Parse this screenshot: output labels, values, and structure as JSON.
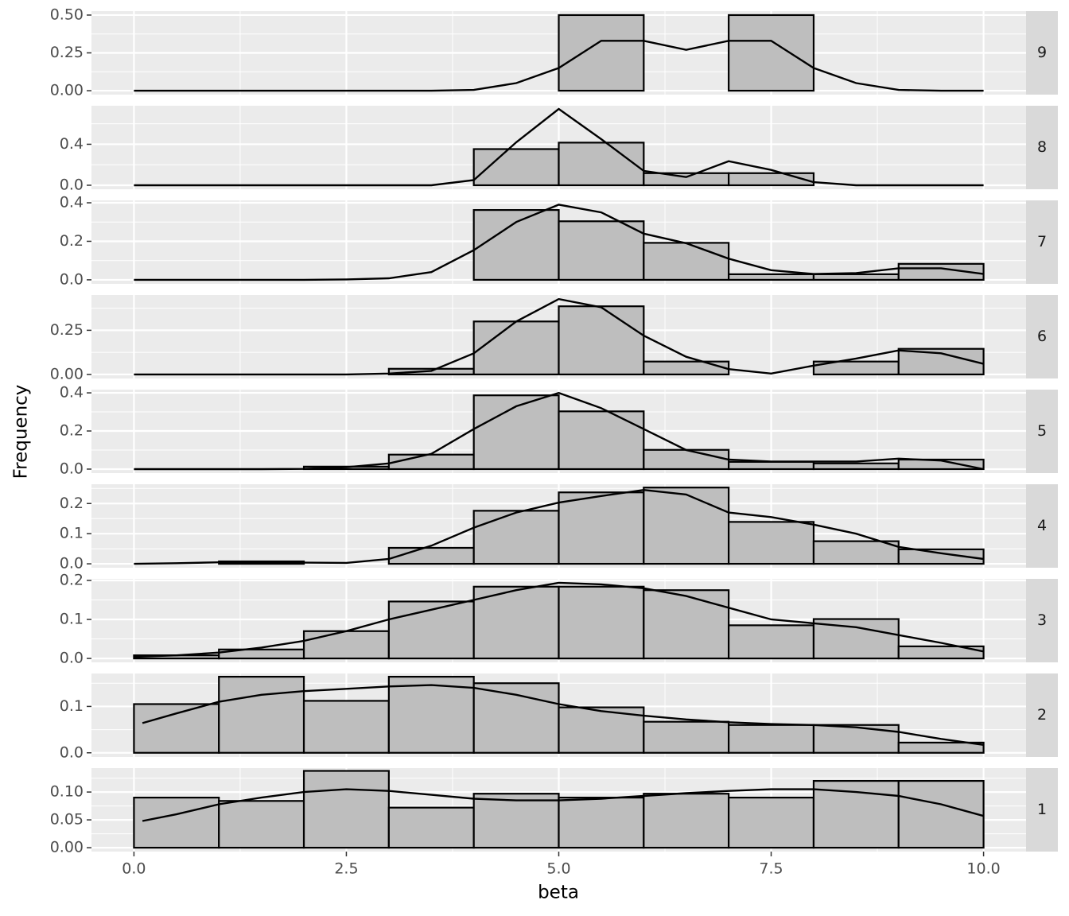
{
  "chart_data": {
    "type": "histogram",
    "xlabel": "beta",
    "ylabel": "Frequency",
    "xlim": [
      -0.5,
      10.5
    ],
    "xticks": [
      {
        "value": 0,
        "label": "0.0"
      },
      2.5,
      {
        "value": 5,
        "label": "5.0"
      },
      7.5,
      {
        "value": 10,
        "label": "10.0"
      }
    ],
    "bins": [
      0,
      1,
      2,
      3,
      4,
      5,
      6,
      7,
      8,
      9,
      10
    ],
    "color": "#bebebe",
    "edgecolor": "#000000",
    "line_color": "#000000",
    "grid": true,
    "facets": [
      {
        "strip": "9",
        "ylim": [
          -0.026,
          0.526
        ],
        "yticks": [
          {
            "value": 0,
            "label": "0.00"
          },
          0.25,
          {
            "value": 0.5,
            "label": "0.50"
          }
        ],
        "values": [
          0,
          0,
          0,
          0,
          0,
          0.5,
          0,
          0.5,
          0,
          0
        ],
        "density": {
          "x": [
            0,
            0.5,
            1,
            1.5,
            2,
            2.5,
            3,
            3.5,
            4,
            4.5,
            5,
            5.5,
            6,
            6.5,
            7,
            7.5,
            8,
            8.5,
            9,
            9.5,
            10
          ],
          "values": [
            0,
            0,
            0,
            0,
            0,
            0,
            0,
            0,
            0.005,
            0.05,
            0.15,
            0.33,
            0.33,
            0.27,
            0.33,
            0.33,
            0.15,
            0.05,
            0.005,
            0,
            0
          ]
        }
      },
      {
        "strip": "8",
        "ylim": [
          -0.039,
          0.776
        ],
        "yticks": [
          {
            "value": 0,
            "label": "0.0"
          },
          0.4
        ],
        "values": [
          0,
          0,
          0,
          0,
          0.353,
          0.416,
          0.118,
          0.118,
          0,
          0
        ],
        "density": {
          "x": [
            0,
            0.5,
            1,
            1.5,
            2,
            2.5,
            3,
            3.5,
            4,
            4.5,
            5,
            5.5,
            6,
            6.5,
            7,
            7.5,
            8,
            8.5,
            9,
            9.5,
            10
          ],
          "values": [
            0,
            0,
            0,
            0,
            0,
            0,
            0,
            0,
            0.05,
            0.42,
            0.745,
            0.45,
            0.14,
            0.08,
            0.235,
            0.15,
            0.03,
            0,
            0,
            0,
            0
          ]
        }
      },
      {
        "strip": "7",
        "ylim": [
          -0.021,
          0.4125
        ],
        "yticks": [
          {
            "value": 0,
            "label": "0.0"
          },
          0.2,
          0.4
        ],
        "values": [
          0,
          0,
          0,
          0,
          0.3625,
          0.304,
          0.192,
          0.029,
          0.029,
          0.083
        ],
        "density": {
          "x": [
            0,
            0.5,
            1,
            1.5,
            2,
            2.5,
            3,
            3.5,
            4,
            4.5,
            5,
            5.5,
            6,
            6.5,
            7,
            7.5,
            8,
            8.5,
            9,
            9.5,
            10
          ],
          "values": [
            0,
            0,
            0,
            0,
            0,
            0.002,
            0.008,
            0.04,
            0.154,
            0.3,
            0.39,
            0.35,
            0.24,
            0.19,
            0.11,
            0.05,
            0.03,
            0.035,
            0.06,
            0.06,
            0.03
          ]
        }
      },
      {
        "strip": "6",
        "ylim": [
          -0.023,
          0.45
        ],
        "yticks": [
          {
            "value": 0,
            "label": "0.00"
          },
          0.25
        ],
        "values": [
          0,
          0,
          0,
          0.032,
          0.3,
          0.386,
          0.073,
          0,
          0.073,
          0.145
        ],
        "density": {
          "x": [
            0,
            0.5,
            1,
            1.5,
            2,
            2.5,
            3,
            3.5,
            4,
            4.5,
            5,
            5.5,
            6,
            6.5,
            7,
            7.5,
            8,
            8.5,
            9,
            9.5,
            10
          ],
          "values": [
            0,
            0,
            0,
            0,
            0,
            0,
            0.005,
            0.02,
            0.12,
            0.3,
            0.427,
            0.38,
            0.22,
            0.1,
            0.03,
            0.005,
            0.05,
            0.09,
            0.136,
            0.12,
            0.06
          ]
        }
      },
      {
        "strip": "5",
        "ylim": [
          -0.021,
          0.417
        ],
        "yticks": [
          {
            "value": 0,
            "label": "0.0"
          },
          0.2,
          0.4
        ],
        "values": [
          0,
          0,
          0.013,
          0.076,
          0.387,
          0.303,
          0.101,
          0.038,
          0.03,
          0.05
        ],
        "density": {
          "x": [
            0,
            0.5,
            1,
            1.5,
            2,
            2.5,
            3,
            3.5,
            4,
            4.5,
            5,
            5.5,
            6,
            6.5,
            7,
            7.5,
            8,
            8.5,
            9,
            9.5,
            10
          ],
          "values": [
            0,
            0,
            0,
            0,
            0.001,
            0.01,
            0.03,
            0.08,
            0.21,
            0.33,
            0.4,
            0.32,
            0.21,
            0.1,
            0.05,
            0.04,
            0.04,
            0.04,
            0.055,
            0.045,
            0
          ]
        }
      },
      {
        "strip": "4",
        "ylim": [
          -0.013,
          0.264
        ],
        "yticks": [
          {
            "value": 0,
            "label": "0.0"
          },
          0.1,
          0.2
        ],
        "values": [
          0,
          0.008,
          0,
          0.053,
          0.176,
          0.237,
          0.253,
          0.139,
          0.075,
          0.048
        ],
        "density": {
          "x": [
            0,
            0.5,
            1,
            1.5,
            2,
            2.5,
            3,
            3.5,
            4,
            4.5,
            5,
            5.5,
            6,
            6.5,
            7,
            7.5,
            8,
            8.5,
            9,
            9.5,
            10
          ],
          "values": [
            0,
            0.002,
            0.005,
            0.006,
            0.004,
            0.003,
            0.016,
            0.06,
            0.12,
            0.17,
            0.203,
            0.225,
            0.245,
            0.23,
            0.17,
            0.155,
            0.13,
            0.1,
            0.056,
            0.035,
            0.016
          ]
        }
      },
      {
        "strip": "3",
        "ylim": [
          -0.01,
          0.204
        ],
        "yticks": [
          {
            "value": 0,
            "label": "0.0"
          },
          0.1,
          0.2
        ],
        "values": [
          0.008,
          0.023,
          0.07,
          0.146,
          0.184,
          0.184,
          0.175,
          0.085,
          0.101,
          0.031
        ],
        "density": {
          "x": [
            0,
            0.5,
            1,
            1.5,
            2,
            2.5,
            3,
            3.5,
            4,
            4.5,
            5,
            5.5,
            6,
            6.5,
            7,
            7.5,
            8,
            8.5,
            9,
            9.5,
            10
          ],
          "values": [
            0.004,
            0.008,
            0.015,
            0.028,
            0.045,
            0.07,
            0.1,
            0.125,
            0.15,
            0.175,
            0.194,
            0.19,
            0.18,
            0.16,
            0.13,
            0.1,
            0.09,
            0.08,
            0.06,
            0.04,
            0.018
          ]
        }
      },
      {
        "strip": "2",
        "ylim": [
          -0.009,
          0.171
        ],
        "yticks": [
          {
            "value": 0,
            "label": "0.0"
          },
          0.1
        ],
        "values": [
          0.105,
          0.164,
          0.112,
          0.164,
          0.15,
          0.098,
          0.067,
          0.06,
          0.06,
          0.022
        ],
        "density": {
          "x": [
            0.1,
            0.5,
            1,
            1.5,
            2,
            2.5,
            3,
            3.5,
            4,
            4.5,
            5,
            5.5,
            6,
            6.5,
            7,
            7.5,
            8,
            8.5,
            9,
            9.5,
            10
          ],
          "values": [
            0.064,
            0.085,
            0.11,
            0.125,
            0.133,
            0.138,
            0.143,
            0.146,
            0.14,
            0.125,
            0.105,
            0.09,
            0.08,
            0.072,
            0.066,
            0.062,
            0.06,
            0.055,
            0.045,
            0.03,
            0.017
          ]
        }
      },
      {
        "strip": "1",
        "ylim": [
          -0.007,
          0.143
        ],
        "yticks": [
          {
            "value": 0,
            "label": "0.00"
          },
          0.05,
          {
            "value": 0.1,
            "label": "0.10"
          }
        ],
        "values": [
          0.09,
          0.084,
          0.138,
          0.072,
          0.097,
          0.09,
          0.097,
          0.09,
          0.12,
          0.12
        ],
        "density": {
          "x": [
            0.1,
            0.5,
            1,
            1.5,
            2,
            2.5,
            3,
            3.5,
            4,
            4.5,
            5,
            5.5,
            6,
            6.5,
            7,
            7.5,
            8,
            8.5,
            9,
            9.5,
            10
          ],
          "values": [
            0.048,
            0.06,
            0.078,
            0.09,
            0.1,
            0.105,
            0.102,
            0.095,
            0.088,
            0.085,
            0.085,
            0.088,
            0.093,
            0.098,
            0.102,
            0.105,
            0.105,
            0.1,
            0.093,
            0.078,
            0.057
          ]
        }
      }
    ]
  }
}
